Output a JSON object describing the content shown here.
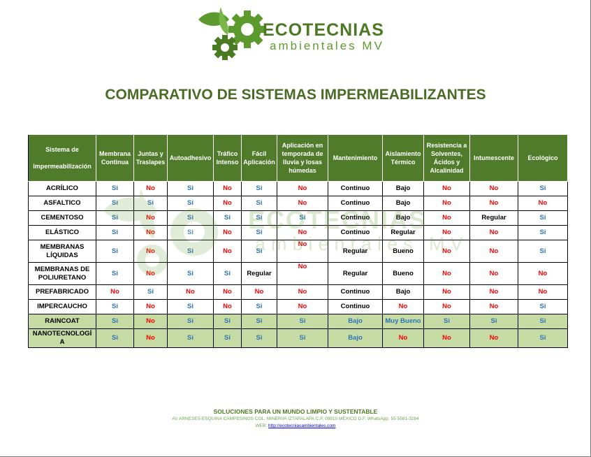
{
  "logo": {
    "brand": "ECOTECNIAS",
    "sub": "ambientales MV"
  },
  "title": "COMPARATIVO DE SISTEMAS IMPERMEABILIZANTES",
  "table": {
    "header_first_lines": [
      "Sistema de",
      "Impermeabilización"
    ],
    "headers": [
      "Membrana Continua",
      "Juntas y Traslapes",
      "Autoadhesivo",
      "Tráfico Intenso",
      "Fácil Aplicación",
      "Aplicación en temporada de lluvia y losas húmedas",
      "Mantenimiento",
      "Aislamiento Térmico",
      "Resistencia a Solventes, Ácidos y Alcalinidad",
      "Intumescente",
      "Ecológico"
    ],
    "rows": [
      {
        "name": [
          "ACRÍLICO"
        ],
        "values": [
          "Si",
          "No",
          "Si",
          "No",
          "Si",
          "No",
          "Continuo",
          "Bajo",
          "No",
          "No",
          "Si"
        ]
      },
      {
        "name": [
          "ASFALTICO"
        ],
        "values": [
          "Si",
          "Si",
          "Si",
          "No",
          "Si",
          "No",
          "Continuo",
          "Bajo",
          "No",
          "No",
          "No"
        ]
      },
      {
        "name": [
          "CEMENTOSO"
        ],
        "values": [
          "Si",
          "No",
          "Si",
          "Si",
          "Si",
          "Si",
          "Continuo",
          "Bajo",
          "No",
          "Regular",
          "Si"
        ]
      },
      {
        "name": [
          "ELÁSTICO"
        ],
        "values": [
          "Si",
          "No",
          "Si",
          "No",
          "Si",
          "No",
          "Continuo",
          "Regular",
          "No",
          "No",
          "Si"
        ]
      },
      {
        "name": [
          "MEMBRANAS",
          "LÍQUIDAS"
        ],
        "values": [
          "Si",
          "No",
          "Si",
          "No",
          "Si",
          "No",
          "Regular",
          "Bueno",
          "No",
          "No",
          "Si"
        ]
      },
      {
        "name": [
          "MEMBRANAS DE",
          "POLIURETANO"
        ],
        "values": [
          "Si",
          "No",
          "Si",
          "Si",
          "Regular",
          "No",
          "Regular",
          "Bueno",
          "No",
          "No",
          "No"
        ]
      },
      {
        "name": [
          "PREFABRICADO"
        ],
        "values": [
          "No",
          "Si",
          "No",
          "No",
          "No",
          "No",
          "Continuo",
          "Bajo",
          "No",
          "No",
          "No"
        ]
      },
      {
        "name": [
          "IMPERCAUCHO"
        ],
        "values": [
          "Si",
          "No",
          "Si",
          "No",
          "Si",
          "No",
          "Continuo",
          "No",
          "No",
          "No",
          "Si"
        ]
      },
      {
        "name": [
          "RAINCOAT"
        ],
        "values": [
          "Si",
          "No",
          "Si",
          "Si",
          "Si",
          "Si",
          "Bajo",
          "Muy Bueno",
          "Si",
          "Si",
          "Si"
        ]
      },
      {
        "name": [
          "NANOTECNOLOGÍ",
          "A"
        ],
        "values": [
          "Si",
          "No",
          "Si",
          "Si",
          "Si",
          "Si",
          "Bajo",
          "No",
          "No",
          "No",
          "Si"
        ]
      }
    ]
  },
  "footer": {
    "slogan": "SOLUCIONES PARA UN MUNDO LIMPIO Y SUSTENTABLE",
    "address": "AV ARNESES ESQUINA CAMPESINOS COL. MINERVA IZTAPALAPA C.P. 09810 MÉXICO D.F. WhatsApp: 55 5581-3284",
    "web_label": "WEB:",
    "web_url": "http://ecotecniasambientales.com"
  },
  "colors": {
    "header_green": "#4f7b2a",
    "highlight_green": "#c6dba3",
    "si_blue": "#2e74b5",
    "no_red": "#ff0000"
  },
  "icons": [
    "leaf-gear-logo-icon"
  ]
}
